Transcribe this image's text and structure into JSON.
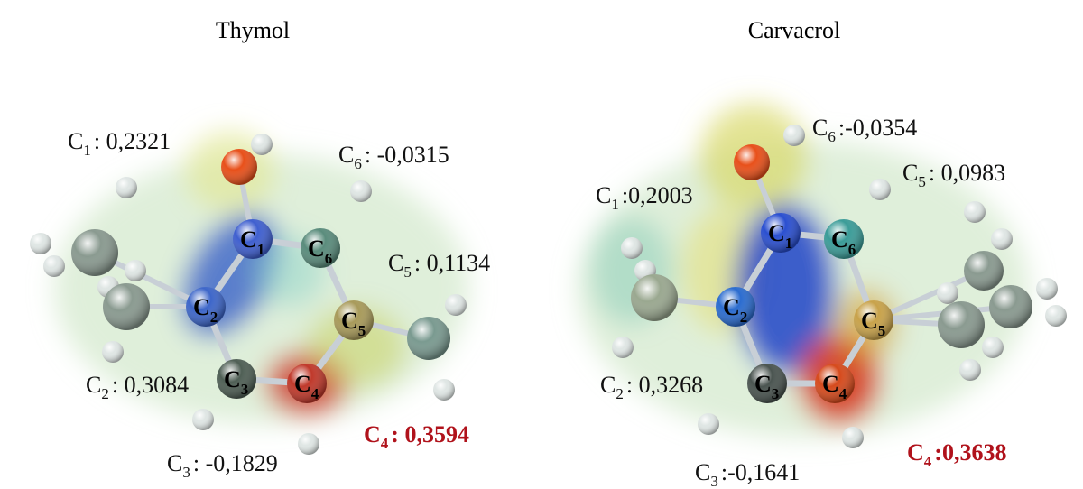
{
  "panels": [
    {
      "title": "Thymol",
      "charges": [
        {
          "element": "C",
          "index": "1",
          "value": ": 0,2321"
        },
        {
          "element": "C",
          "index": "6",
          "value": ": -0,0315"
        },
        {
          "element": "C",
          "index": "5",
          "value": ": 0,1134"
        },
        {
          "element": "C",
          "index": "2",
          "value": ": 0,3084"
        },
        {
          "element": "C",
          "index": "3",
          "value": ": -0,1829"
        },
        {
          "element": "C",
          "index": "4",
          "value": ": 0,3594"
        }
      ],
      "atoms": [
        {
          "element": "C",
          "index": "1"
        },
        {
          "element": "C",
          "index": "6"
        },
        {
          "element": "C",
          "index": "5"
        },
        {
          "element": "C",
          "index": "4"
        },
        {
          "element": "C",
          "index": "3"
        },
        {
          "element": "C",
          "index": "2"
        }
      ]
    },
    {
      "title": "Carvacrol",
      "charges": [
        {
          "element": "C",
          "index": "6",
          "value": ":-0,0354"
        },
        {
          "element": "C",
          "index": "1",
          "value": ":0,2003"
        },
        {
          "element": "C",
          "index": "5",
          "value": ": 0,0983"
        },
        {
          "element": "C",
          "index": "2",
          "value": ": 0,3268"
        },
        {
          "element": "C",
          "index": "3",
          "value": ":-0,1641"
        },
        {
          "element": "C",
          "index": "4",
          "value": ":0,3638"
        }
      ],
      "atoms": [
        {
          "element": "C",
          "index": "1"
        },
        {
          "element": "C",
          "index": "6"
        },
        {
          "element": "C",
          "index": "5"
        },
        {
          "element": "C",
          "index": "4"
        },
        {
          "element": "C",
          "index": "3"
        },
        {
          "element": "C",
          "index": "2"
        }
      ]
    }
  ]
}
